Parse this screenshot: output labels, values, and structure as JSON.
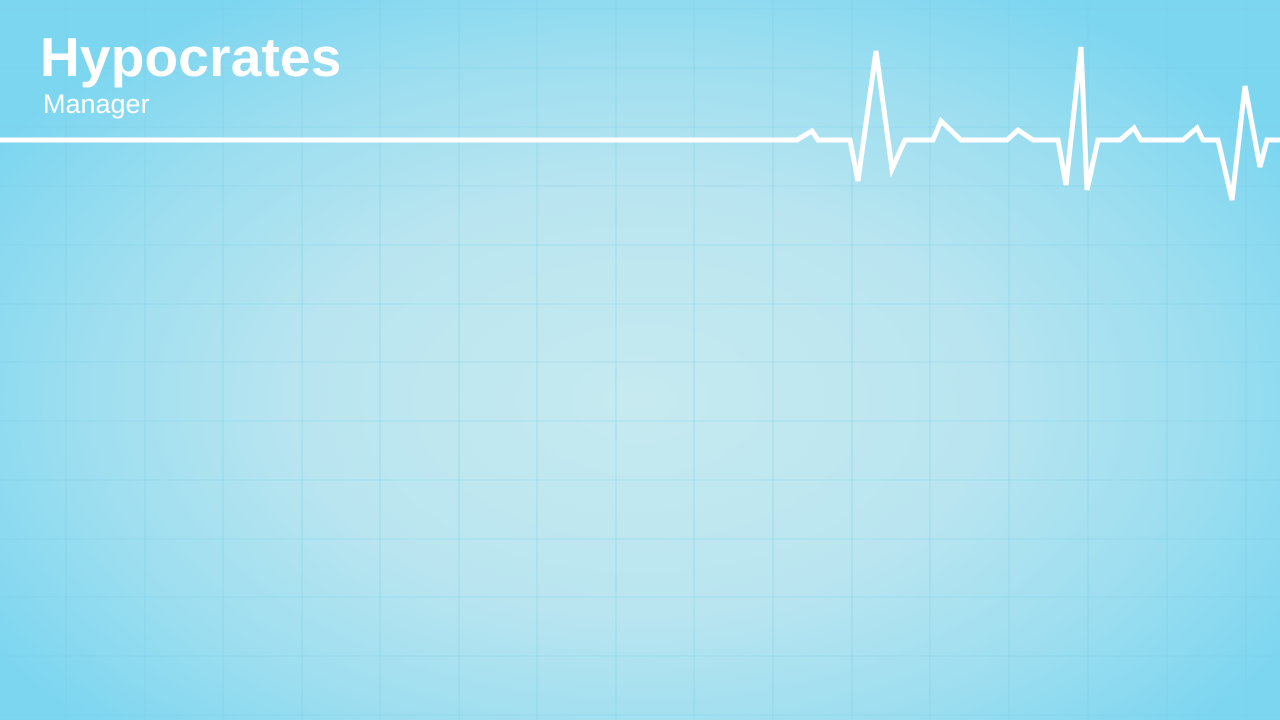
{
  "app": {
    "title": "Hypocrates",
    "subtitle": "Manager"
  },
  "colors": {
    "background_center": "#c6eaf0",
    "background_edge": "#7dd6f0",
    "grid_line": "#7ccbe2",
    "text": "#ffffff",
    "heartbeat_line": "#ffffff"
  },
  "decoration": {
    "heartbeat_icon": "ecg-heartbeat-line",
    "background": "grid-pattern"
  }
}
